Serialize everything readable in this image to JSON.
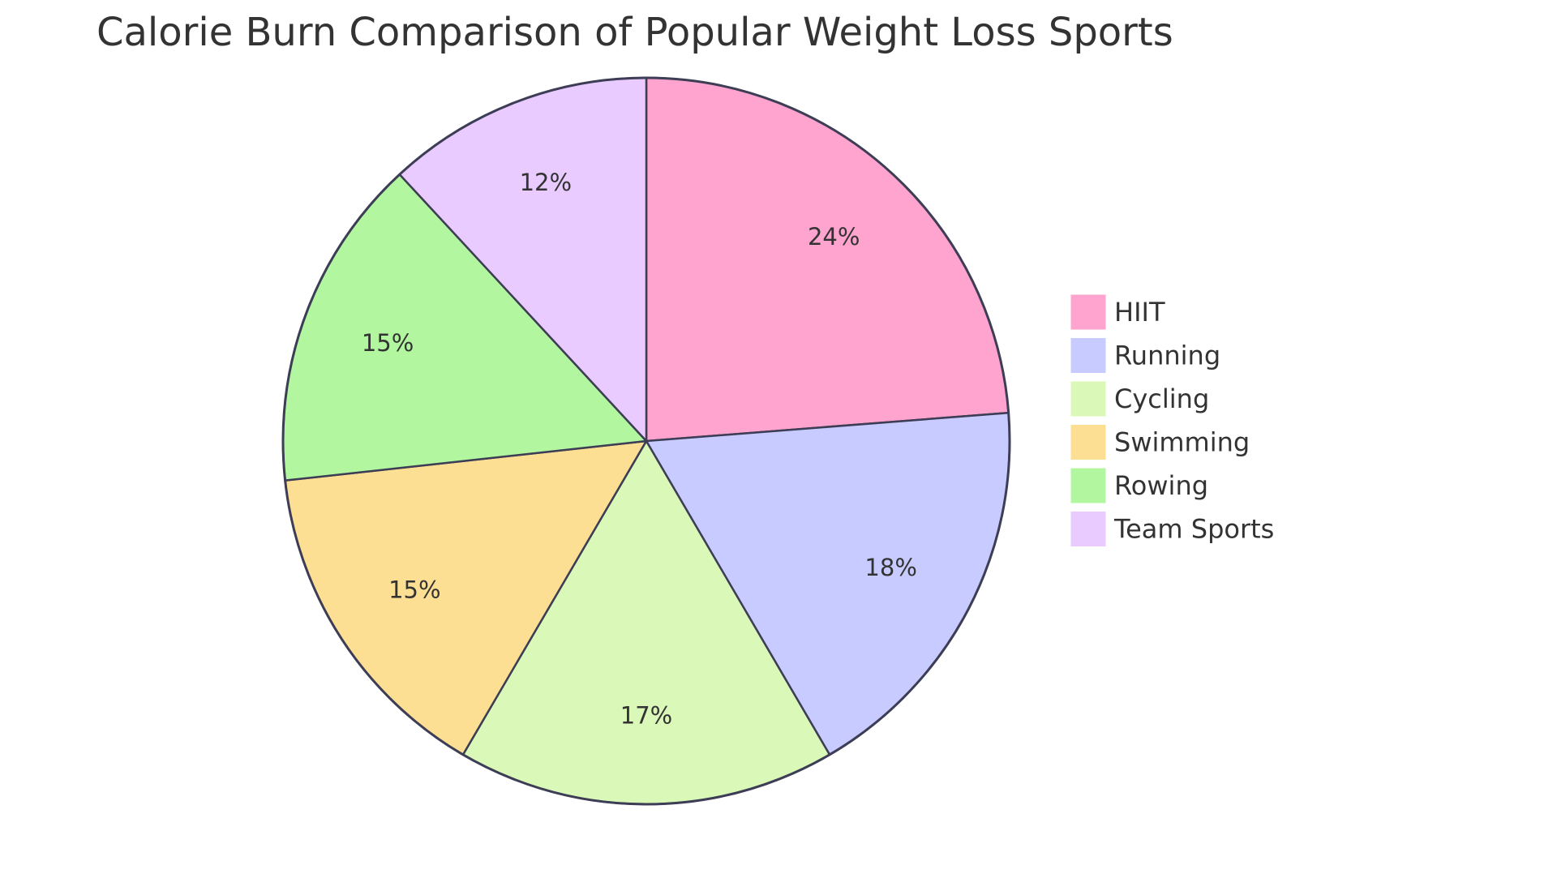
{
  "chart_data": {
    "type": "pie",
    "title": "Calorie Burn Comparison of Popular Weight Loss Sports",
    "categories": [
      "HIIT",
      "Running",
      "Cycling",
      "Swimming",
      "Rowing",
      "Team Sports"
    ],
    "values": [
      24,
      18,
      17,
      15,
      15,
      12
    ],
    "value_labels": [
      "24%",
      "18%",
      "17%",
      "15%",
      "15%",
      "12%"
    ],
    "colors": [
      "#ffa3cf",
      "#c8cbff",
      "#daf9b9",
      "#fddf94",
      "#b2f7a0",
      "#e9cbff"
    ],
    "legend": "right"
  }
}
